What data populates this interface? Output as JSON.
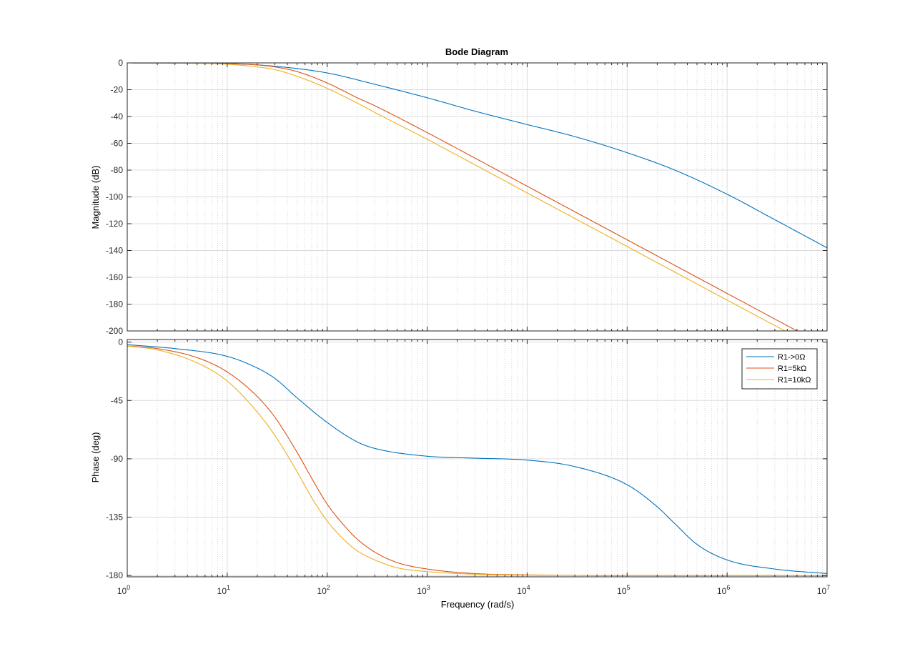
{
  "chart_data": {
    "type": "line",
    "title": "Bode Diagram",
    "xlabel": "Frequency  (rad/s)",
    "x_scale": "log",
    "xlim": [
      1,
      10000000
    ],
    "x_ticks": [
      {
        "base": "10",
        "exp": "0"
      },
      {
        "base": "10",
        "exp": "1"
      },
      {
        "base": "10",
        "exp": "2"
      },
      {
        "base": "10",
        "exp": "3"
      },
      {
        "base": "10",
        "exp": "4"
      },
      {
        "base": "10",
        "exp": "5"
      },
      {
        "base": "10",
        "exp": "6"
      },
      {
        "base": "10",
        "exp": "7"
      }
    ],
    "grid": true,
    "legend_position": "top-right (phase panel)",
    "series_colors": [
      "#0072BD",
      "#D95319",
      "#EDB120"
    ],
    "legend": [
      "R1->0Ω",
      "R1=5kΩ",
      "R1=10kΩ"
    ],
    "panels": [
      {
        "ylabel": "Magnitude (dB)",
        "ylim": [
          -200,
          0
        ],
        "y_ticks": [
          "0",
          "-20",
          "-40",
          "-60",
          "-80",
          "-100",
          "-120",
          "-140",
          "-160",
          "-180",
          "-200"
        ],
        "series": [
          {
            "name": "R1->0Ω",
            "x": [
              1,
              3,
              10,
              30,
              100,
              300,
              1000,
              3000,
              10000,
              30000,
              100000,
              300000,
              1000000,
              3000000,
              10000000
            ],
            "y": [
              0,
              -0.1,
              -0.5,
              -2.5,
              -7.5,
              -16,
              -26,
              -36,
              -46,
              -55,
              -67,
              -80,
              -98,
              -117,
              -138
            ]
          },
          {
            "name": "R1=5kΩ",
            "x": [
              1,
              3,
              10,
              20,
              30,
              50,
              100,
              200,
              300,
              1000,
              3000,
              10000,
              100000,
              1000000,
              5000000
            ],
            "y": [
              0,
              -0.1,
              -0.5,
              -1.5,
              -3,
              -6.5,
              -15,
              -26,
              -32,
              -52,
              -71,
              -92,
              -132,
              -172,
              -200
            ]
          },
          {
            "name": "R1=10kΩ",
            "x": [
              1,
              3,
              10,
              20,
              30,
              50,
              100,
              200,
              300,
              1000,
              3000,
              10000,
              100000,
              1000000,
              3800000
            ],
            "y": [
              0,
              -0.2,
              -1,
              -3,
              -5,
              -10,
              -19,
              -30,
              -37,
              -57,
              -76,
              -97,
              -137,
              -177,
              -200
            ]
          }
        ]
      },
      {
        "ylabel": "Phase (deg)",
        "ylim": [
          -181,
          2
        ],
        "y_ticks": [
          "0",
          "-45",
          "-90",
          "-135",
          "-180"
        ],
        "series": [
          {
            "name": "R1->0Ω",
            "x": [
              1,
              3,
              10,
              20,
              30,
              50,
              100,
              200,
              300,
              1000,
              3000,
              10000,
              30000,
              100000,
              200000,
              300000,
              500000,
              1000000,
              3000000,
              10000000
            ],
            "y": [
              -2,
              -5,
              -11,
              -20,
              -28,
              -43,
              -62,
              -77,
              -82,
              -88,
              -89.5,
              -91,
              -96,
              -110,
              -127,
              -140,
              -156,
              -168,
              -175,
              -178.5
            ]
          },
          {
            "name": "R1=5kΩ",
            "x": [
              1,
              2,
              5,
              10,
              20,
              30,
              50,
              70,
              100,
              150,
              200,
              300,
              500,
              1000,
              3000,
              10000,
              100000,
              10000000
            ],
            "y": [
              -3,
              -5,
              -12,
              -23,
              -42,
              -58,
              -85,
              -105,
              -125,
              -142,
              -152,
              -162,
              -170,
              -175,
              -178.5,
              -179.5,
              -180,
              -180
            ]
          },
          {
            "name": "R1=10kΩ",
            "x": [
              1,
              2,
              5,
              10,
              20,
              30,
              50,
              70,
              100,
              150,
              200,
              300,
              500,
              1000,
              3000,
              10000,
              100000,
              10000000
            ],
            "y": [
              -3,
              -6,
              -16,
              -30,
              -54,
              -72,
              -100,
              -120,
              -138,
              -153,
              -161,
              -168,
              -174,
              -177,
              -179,
              -179.7,
              -180,
              -180
            ]
          }
        ]
      }
    ]
  }
}
